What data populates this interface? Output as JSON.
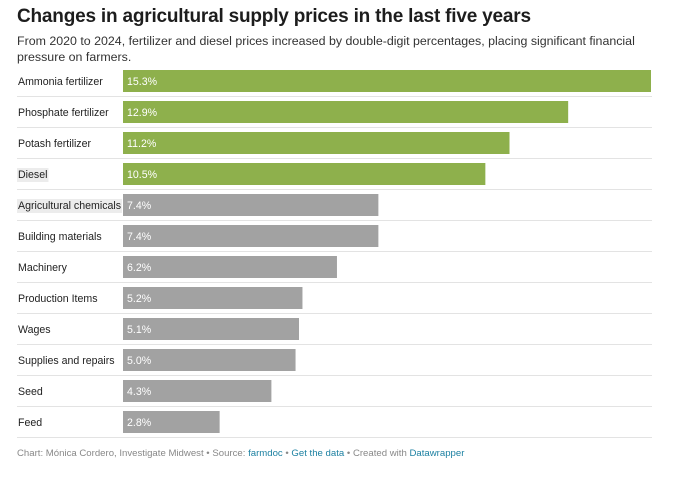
{
  "header": {
    "title": "Changes in agricultural supply prices in the last five years",
    "subtitle": "From 2020 to 2024, fertilizer and diesel prices increased by double-digit percentages, placing significant financial pressure on farmers."
  },
  "colors": {
    "highlight": "#8eb04c",
    "base": "#a2a2a2",
    "label_bg": "#ececec",
    "divider": "#e3e3e3"
  },
  "chart_data": {
    "type": "bar",
    "orientation": "horizontal",
    "title": "Changes in agricultural supply prices in the last five years",
    "categories": [
      "Ammonia fertilizer",
      "Phosphate fertilizer",
      "Potash fertilizer",
      "Diesel",
      "Agricultural chemicals",
      "Building materials",
      "Machinery",
      "Production Items",
      "Wages",
      "Supplies and repairs",
      "Seed",
      "Feed"
    ],
    "values": [
      15.3,
      12.9,
      11.2,
      10.5,
      7.4,
      7.4,
      6.2,
      5.2,
      5.1,
      5.0,
      4.3,
      2.8
    ],
    "value_labels": [
      "15.3%",
      "12.9%",
      "11.2%",
      "10.5%",
      "7.4%",
      "7.4%",
      "6.2%",
      "5.2%",
      "5.1%",
      "5.0%",
      "4.3%",
      "2.8%"
    ],
    "highlighted": [
      true,
      true,
      true,
      true,
      false,
      false,
      false,
      false,
      false,
      false,
      false,
      false
    ],
    "shaded_labels": [
      false,
      false,
      false,
      true,
      true,
      false,
      false,
      false,
      false,
      false,
      false,
      false
    ],
    "xlim": [
      0,
      15.3
    ],
    "grid": false,
    "legend": "none",
    "unit": "%"
  },
  "footer": {
    "credit": "Chart: Mónica Cordero, Investigate Midwest",
    "sep1": " • ",
    "source_label": "Source: ",
    "source_link": "farmdoc",
    "sep2": " • ",
    "data_link": "Get the data",
    "sep3": " • ",
    "created_label": "Created with ",
    "created_link": "Datawrapper"
  }
}
